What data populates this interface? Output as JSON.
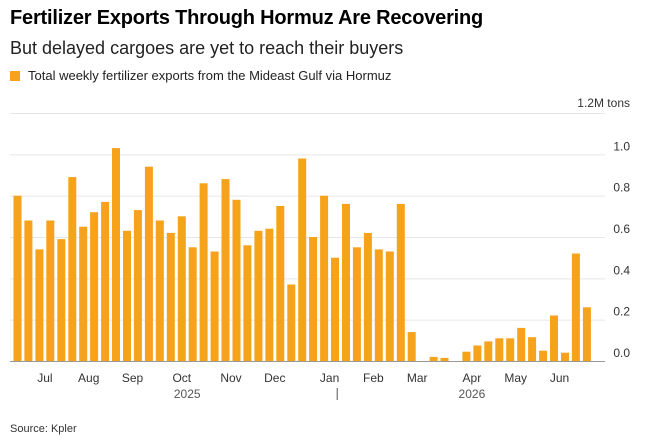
{
  "title": "Fertilizer Exports Through Hormuz Are Recovering",
  "subtitle": "But delayed cargoes are yet to reach their buyers",
  "source": "Source: Kpler",
  "colors": {
    "bar": "#f7a21b",
    "grid": "#e6e6e6",
    "axis": "#999999"
  },
  "chart_data": {
    "type": "bar",
    "legend": "Total weekly fertilizer exports from the Mideast Gulf via Hormuz",
    "unit_label": "1.2M tons",
    "ylim": [
      0,
      1.2
    ],
    "yticks": [
      0.0,
      0.2,
      0.4,
      0.6,
      0.8,
      1.0
    ],
    "ytick_labels": [
      "0.0",
      "0.2",
      "0.4",
      "0.6",
      "0.8",
      "1.0"
    ],
    "grid": true,
    "x_tick_labels": [
      {
        "label": "Jul",
        "at_week": 2.5
      },
      {
        "label": "Aug",
        "at_week": 6.5
      },
      {
        "label": "Sep",
        "at_week": 10.5
      },
      {
        "label": "Oct",
        "at_week": 15
      },
      {
        "label": "Nov",
        "at_week": 19.5
      },
      {
        "label": "Dec",
        "at_week": 23.5
      },
      {
        "label": "Jan",
        "at_week": 28.5
      },
      {
        "label": "Feb",
        "at_week": 32.5
      },
      {
        "label": "Mar",
        "at_week": 36.5
      },
      {
        "label": "Apr",
        "at_week": 41.5
      },
      {
        "label": "May",
        "at_week": 45.5
      },
      {
        "label": "Jun",
        "at_week": 49.5
      }
    ],
    "year_labels": [
      {
        "label": "2025",
        "at_week": 15.5
      },
      {
        "label": "2026",
        "at_week": 41.5
      }
    ],
    "year_divider_at_week": 29.2,
    "values": [
      0.8,
      0.68,
      0.54,
      0.68,
      0.59,
      0.89,
      0.65,
      0.72,
      0.77,
      1.03,
      0.63,
      0.73,
      0.94,
      0.68,
      0.62,
      0.7,
      0.55,
      0.86,
      0.53,
      0.88,
      0.78,
      0.56,
      0.63,
      0.64,
      0.75,
      0.37,
      0.98,
      0.6,
      0.8,
      0.5,
      0.76,
      0.55,
      0.62,
      0.54,
      0.53,
      0.76,
      0.14,
      0.0,
      0.02,
      0.015,
      0.0,
      0.045,
      0.075,
      0.095,
      0.11,
      0.11,
      0.16,
      0.115,
      0.05,
      0.22,
      0.04,
      0.52,
      0.26
    ]
  }
}
